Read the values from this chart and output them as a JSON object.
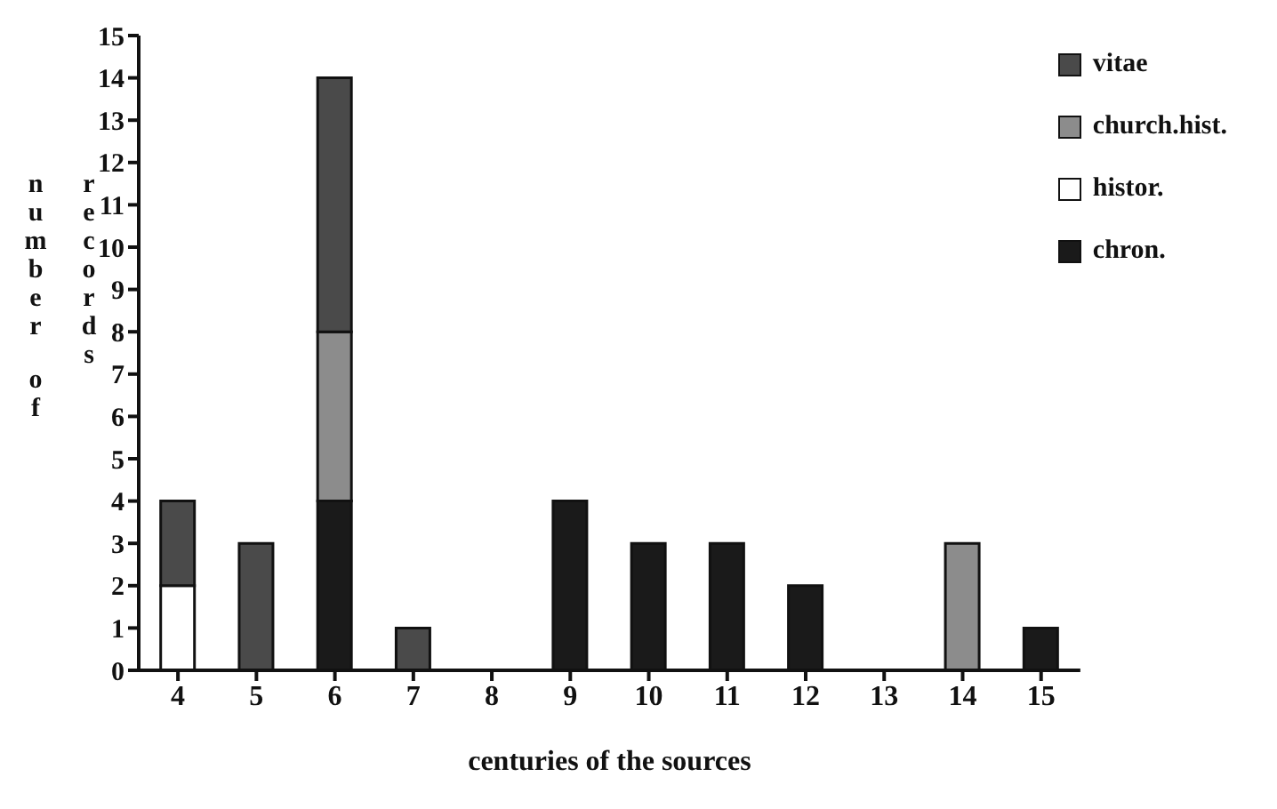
{
  "chart_data": {
    "type": "bar",
    "stacked": true,
    "xlabel": "centuries of the sources",
    "ylabel": "number of records",
    "categories": [
      "4",
      "5",
      "6",
      "7",
      "8",
      "9",
      "10",
      "11",
      "12",
      "13",
      "14",
      "15"
    ],
    "series": [
      {
        "name": "chron.",
        "color": "#1a1a1a",
        "values": [
          0,
          0,
          4,
          0,
          0,
          4,
          3,
          3,
          2,
          0,
          0,
          1
        ]
      },
      {
        "name": "histor.",
        "color": "#ffffff",
        "values": [
          2,
          0,
          0,
          0,
          0,
          0,
          0,
          0,
          0,
          0,
          0,
          0
        ]
      },
      {
        "name": "church.hist.",
        "color": "#8c8c8c",
        "values": [
          0,
          0,
          4,
          0,
          0,
          0,
          0,
          0,
          0,
          0,
          3,
          0
        ]
      },
      {
        "name": "vitae",
        "color": "#4a4a4a",
        "values": [
          2,
          3,
          6,
          1,
          0,
          0,
          0,
          0,
          0,
          0,
          0,
          0
        ]
      }
    ],
    "ylim": [
      0,
      15
    ],
    "yticks": [
      0,
      1,
      2,
      3,
      4,
      5,
      6,
      7,
      8,
      9,
      10,
      11,
      12,
      13,
      14,
      15
    ],
    "grid": false,
    "legend": "top right"
  }
}
